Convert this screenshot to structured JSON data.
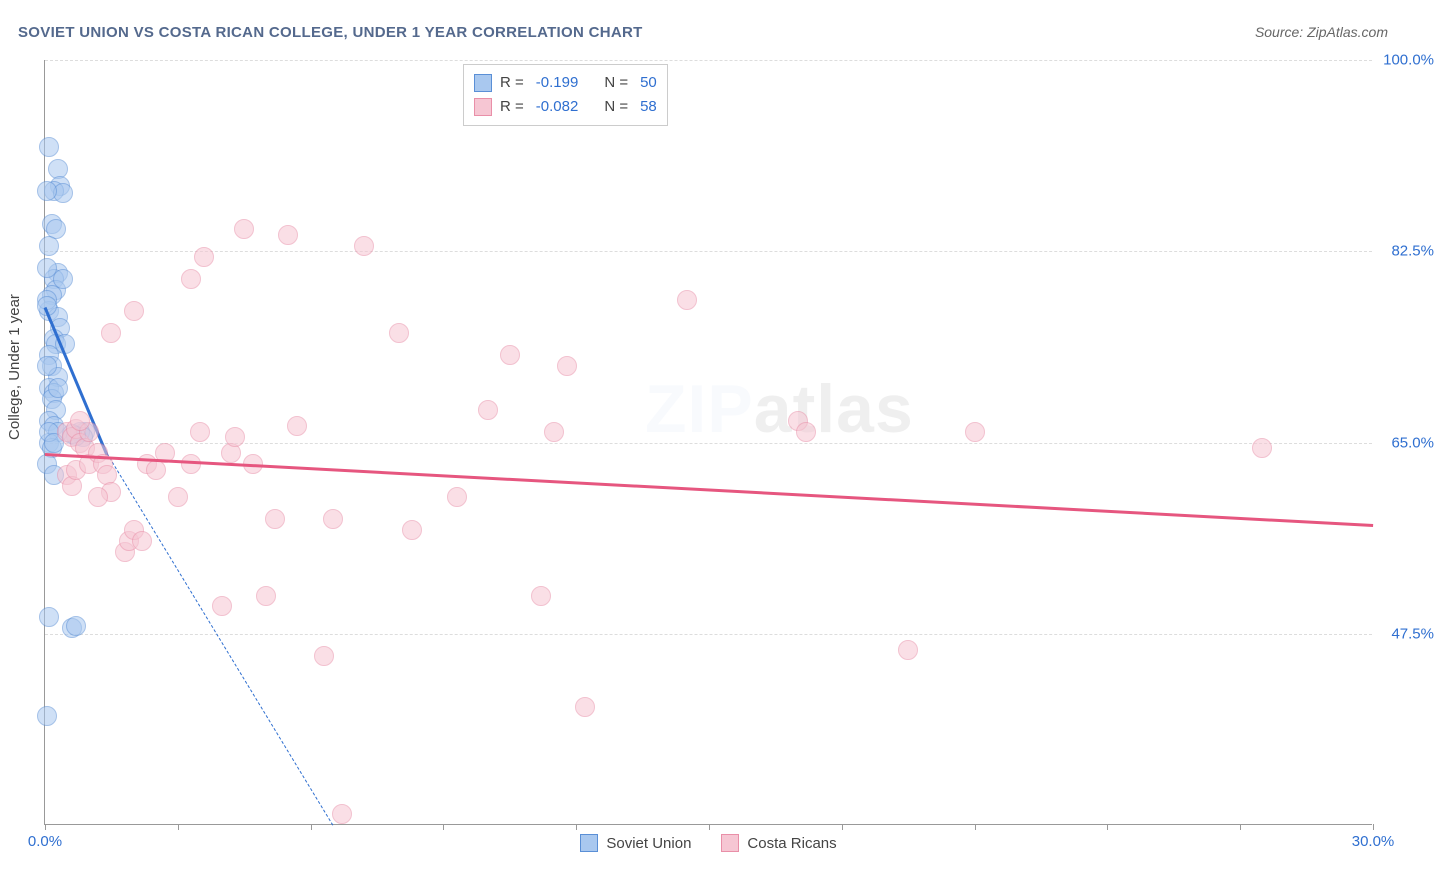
{
  "title": "SOVIET UNION VS COSTA RICAN COLLEGE, UNDER 1 YEAR CORRELATION CHART",
  "source_label": "Source:",
  "source_name": "ZipAtlas.com",
  "ylabel": "College, Under 1 year",
  "watermark_a": "ZIP",
  "watermark_b": "atlas",
  "chart": {
    "type": "scatter",
    "xlim": [
      0.0,
      30.0
    ],
    "ylim": [
      30.0,
      100.0
    ],
    "xtick_positions": [
      0.0,
      3.0,
      6.0,
      9.0,
      12.0,
      15.0,
      18.0,
      21.0,
      24.0,
      27.0,
      30.0
    ],
    "xtick_labels": {
      "0": "0.0%",
      "10": "30.0%"
    },
    "ytick_positions": [
      47.5,
      65.0,
      82.5,
      100.0
    ],
    "ytick_labels": [
      "47.5%",
      "65.0%",
      "82.5%",
      "100.0%"
    ],
    "grid_color": "#dddddd",
    "axis_color": "#999999",
    "background_color": "#ffffff",
    "label_fontsize": 15,
    "tick_fontsize": 15,
    "tick_color": "#2f6fd0",
    "marker_radius": 10,
    "marker_opacity": 0.55,
    "trend_width": 3,
    "series": [
      {
        "name": "Soviet Union",
        "color_fill": "#a9c8ef",
        "color_stroke": "#5a8fd6",
        "trend_color": "#2f6fd0",
        "data": [
          [
            0.1,
            92.0
          ],
          [
            0.3,
            90.0
          ],
          [
            0.35,
            88.5
          ],
          [
            0.2,
            88.0
          ],
          [
            0.4,
            87.8
          ],
          [
            0.15,
            85.0
          ],
          [
            0.25,
            84.5
          ],
          [
            0.1,
            83.0
          ],
          [
            0.3,
            80.5
          ],
          [
            0.2,
            80.0
          ],
          [
            0.25,
            79.0
          ],
          [
            0.15,
            78.5
          ],
          [
            0.1,
            77.0
          ],
          [
            0.3,
            76.5
          ],
          [
            0.35,
            75.5
          ],
          [
            0.2,
            74.5
          ],
          [
            0.25,
            74.0
          ],
          [
            0.1,
            73.0
          ],
          [
            0.15,
            72.0
          ],
          [
            0.3,
            71.0
          ],
          [
            0.1,
            70.0
          ],
          [
            0.2,
            69.5
          ],
          [
            0.15,
            69.0
          ],
          [
            0.25,
            68.0
          ],
          [
            0.1,
            67.0
          ],
          [
            0.2,
            66.5
          ],
          [
            0.3,
            66.0
          ],
          [
            0.1,
            65.0
          ],
          [
            0.15,
            64.5
          ],
          [
            0.05,
            63.0
          ],
          [
            0.2,
            62.0
          ],
          [
            0.1,
            49.0
          ],
          [
            0.6,
            48.0
          ],
          [
            0.7,
            48.2
          ],
          [
            0.05,
            40.0
          ],
          [
            0.9,
            66.0
          ],
          [
            0.8,
            66.0
          ],
          [
            0.85,
            65.5
          ],
          [
            0.7,
            65.6
          ],
          [
            0.6,
            65.8
          ],
          [
            0.05,
            78.0
          ],
          [
            0.05,
            72.0
          ],
          [
            0.45,
            74.0
          ],
          [
            0.05,
            88.0
          ],
          [
            0.4,
            80.0
          ],
          [
            0.3,
            70.0
          ],
          [
            0.1,
            66.0
          ],
          [
            0.2,
            65.0
          ],
          [
            0.05,
            81.0
          ],
          [
            0.05,
            77.5
          ]
        ],
        "trend": {
          "x1": 0.0,
          "y1": 77.5,
          "x2": 1.4,
          "y2": 64.0
        },
        "trend_dashed": {
          "x1": 1.4,
          "y1": 64.0,
          "x2": 6.5,
          "y2": 30.0
        }
      },
      {
        "name": "Costa Ricans",
        "color_fill": "#f6c6d3",
        "color_stroke": "#e98fa8",
        "trend_color": "#e6567f",
        "data": [
          [
            0.5,
            66.0
          ],
          [
            0.6,
            65.5
          ],
          [
            0.7,
            66.2
          ],
          [
            0.8,
            65.0
          ],
          [
            0.9,
            64.5
          ],
          [
            1.0,
            66.0
          ],
          [
            0.5,
            62.0
          ],
          [
            0.6,
            61.0
          ],
          [
            0.7,
            62.5
          ],
          [
            1.0,
            63.0
          ],
          [
            1.2,
            64.0
          ],
          [
            1.3,
            63.0
          ],
          [
            1.4,
            62.0
          ],
          [
            1.5,
            60.5
          ],
          [
            0.8,
            67.0
          ],
          [
            1.2,
            60.0
          ],
          [
            1.8,
            55.0
          ],
          [
            1.9,
            56.0
          ],
          [
            2.0,
            57.0
          ],
          [
            2.2,
            56.0
          ],
          [
            1.5,
            75.0
          ],
          [
            2.0,
            77.0
          ],
          [
            2.3,
            63.0
          ],
          [
            2.5,
            62.5
          ],
          [
            2.7,
            64.0
          ],
          [
            3.0,
            60.0
          ],
          [
            3.3,
            63.0
          ],
          [
            3.5,
            66.0
          ],
          [
            3.6,
            82.0
          ],
          [
            3.3,
            80.0
          ],
          [
            4.0,
            50.0
          ],
          [
            4.2,
            64.0
          ],
          [
            4.3,
            65.5
          ],
          [
            4.5,
            84.5
          ],
          [
            4.7,
            63.0
          ],
          [
            5.0,
            51.0
          ],
          [
            5.2,
            58.0
          ],
          [
            5.5,
            84.0
          ],
          [
            5.7,
            66.5
          ],
          [
            6.3,
            45.5
          ],
          [
            6.5,
            58.0
          ],
          [
            6.7,
            31.0
          ],
          [
            7.2,
            83.0
          ],
          [
            8.0,
            75.0
          ],
          [
            8.3,
            57.0
          ],
          [
            9.3,
            60.0
          ],
          [
            10.0,
            68.0
          ],
          [
            10.5,
            73.0
          ],
          [
            11.2,
            51.0
          ],
          [
            11.5,
            66.0
          ],
          [
            11.8,
            72.0
          ],
          [
            12.2,
            40.8
          ],
          [
            14.5,
            78.0
          ],
          [
            17.0,
            67.0
          ],
          [
            17.2,
            66.0
          ],
          [
            19.5,
            46.0
          ],
          [
            21.0,
            66.0
          ],
          [
            27.5,
            64.5
          ]
        ],
        "trend": {
          "x1": 0.0,
          "y1": 64.0,
          "x2": 30.0,
          "y2": 57.5
        }
      }
    ],
    "stats_legend": [
      {
        "swatch_fill": "#a9c8ef",
        "swatch_stroke": "#5a8fd6",
        "r_label": "R =",
        "r_val": "-0.199",
        "n_label": "N =",
        "n_val": "50"
      },
      {
        "swatch_fill": "#f6c6d3",
        "swatch_stroke": "#e98fa8",
        "r_label": "R =",
        "r_val": "-0.082",
        "n_label": "N =",
        "n_val": "58"
      }
    ]
  }
}
